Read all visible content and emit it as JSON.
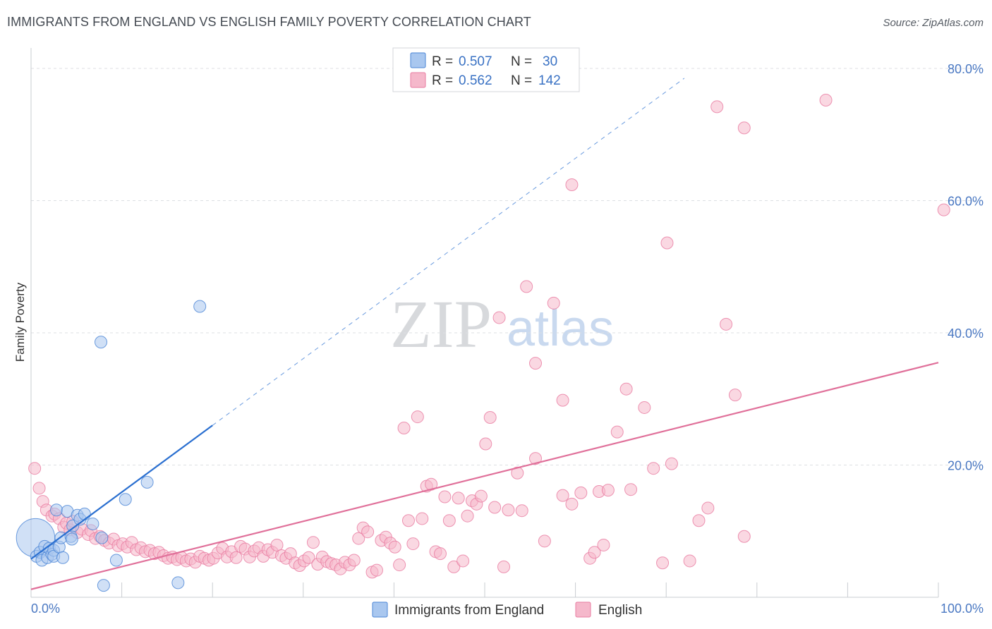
{
  "title": "IMMIGRANTS FROM ENGLAND VS ENGLISH FAMILY POVERTY CORRELATION CHART",
  "source": "Source: ZipAtlas.com",
  "watermark": {
    "part1": "ZIP",
    "part2": "atlas"
  },
  "colors": {
    "blue": "#4a84d6",
    "blue_fill": "#a9c7ef",
    "blue_line": "#2a6fd0",
    "pink": "#e87ba0",
    "pink_fill": "#f5b8cb",
    "pink_line": "#e0709a",
    "grid": "#dcdfe3",
    "tick_label": "#4a78c2"
  },
  "legend": {
    "rows": [
      {
        "r_label": "R =",
        "r_value": "0.507",
        "n_label": "N =",
        "n_value": "30"
      },
      {
        "r_label": "R =",
        "r_value": "0.562",
        "n_label": "N =",
        "n_value": "142"
      }
    ]
  },
  "chart_data": {
    "type": "scatter",
    "title": "IMMIGRANTS FROM ENGLAND VS ENGLISH FAMILY POVERTY CORRELATION CHART",
    "xlabel": "",
    "ylabel": "Family Poverty",
    "xlim": [
      0,
      100
    ],
    "ylim": [
      0,
      82
    ],
    "x_ticks": [
      0,
      10,
      20,
      30,
      40,
      50,
      60,
      70,
      80,
      90,
      100
    ],
    "x_tick_labels": {
      "0": "0.0%",
      "100": "100.0%"
    },
    "y_ticks": [
      20,
      40,
      60,
      80
    ],
    "y_tick_labels": [
      "20.0%",
      "40.0%",
      "60.0%",
      "80.0%"
    ],
    "grid": true,
    "legend_position": "top-center",
    "series": [
      {
        "name": "Immigrants from England",
        "color": "blue",
        "r": 0.507,
        "n": 30,
        "trend": {
          "x0": 0,
          "y0": 5.8,
          "x1": 20,
          "y1": 26.0,
          "dash_to_x": 72
        },
        "points": [
          [
            0.5,
            9.0,
            3.2
          ],
          [
            0.6,
            6.2,
            1
          ],
          [
            1.0,
            6.8,
            1
          ],
          [
            1.2,
            5.6,
            1
          ],
          [
            1.5,
            7.7,
            1
          ],
          [
            1.8,
            6.0,
            1
          ],
          [
            2.0,
            7.4,
            1
          ],
          [
            2.3,
            6.5,
            1
          ],
          [
            2.5,
            7.1,
            1
          ],
          [
            2.5,
            6.2,
            1
          ],
          [
            2.8,
            13.2,
            1
          ],
          [
            3.1,
            7.6,
            1
          ],
          [
            3.3,
            9.0,
            1
          ],
          [
            3.5,
            6.0,
            1
          ],
          [
            4.0,
            13.0,
            1
          ],
          [
            4.4,
            9.2,
            1
          ],
          [
            4.5,
            8.8,
            1
          ],
          [
            4.6,
            10.8,
            1
          ],
          [
            5.1,
            12.4,
            1
          ],
          [
            5.4,
            11.8,
            1
          ],
          [
            5.9,
            12.6,
            1
          ],
          [
            6.8,
            11.1,
            1
          ],
          [
            7.7,
            38.6,
            1
          ],
          [
            7.8,
            9.0,
            1
          ],
          [
            8.0,
            1.8,
            1
          ],
          [
            9.4,
            5.6,
            1
          ],
          [
            10.4,
            14.8,
            1
          ],
          [
            12.8,
            17.4,
            1
          ],
          [
            16.2,
            2.2,
            1
          ],
          [
            18.6,
            44.0,
            1
          ]
        ]
      },
      {
        "name": "English",
        "color": "pink",
        "r": 0.562,
        "n": 142,
        "trend": {
          "x0": 0,
          "y0": 1.2,
          "x1": 100,
          "y1": 35.5
        },
        "points": [
          [
            0.4,
            19.5,
            1
          ],
          [
            0.9,
            16.5,
            1
          ],
          [
            1.3,
            14.5,
            1
          ],
          [
            1.7,
            13.2,
            1
          ],
          [
            2.3,
            12.3,
            1
          ],
          [
            2.6,
            12.6,
            1
          ],
          [
            3.1,
            11.9,
            1
          ],
          [
            3.6,
            10.6,
            1
          ],
          [
            3.9,
            11.2,
            1
          ],
          [
            4.3,
            10.2,
            1
          ],
          [
            4.6,
            11.5,
            1
          ],
          [
            5.1,
            9.8,
            1
          ],
          [
            5.6,
            10.3,
            1
          ],
          [
            6.3,
            9.5,
            1
          ],
          [
            6.6,
            10.1,
            1
          ],
          [
            7.1,
            8.9,
            1
          ],
          [
            7.6,
            9.2,
            1
          ],
          [
            8.1,
            8.6,
            1
          ],
          [
            8.6,
            8.2,
            1
          ],
          [
            9.1,
            8.8,
            1
          ],
          [
            9.6,
            7.8,
            1
          ],
          [
            10.1,
            8.1,
            1
          ],
          [
            10.6,
            7.6,
            1
          ],
          [
            11.1,
            8.3,
            1
          ],
          [
            11.6,
            7.2,
            1
          ],
          [
            12.1,
            7.5,
            1
          ],
          [
            12.6,
            6.9,
            1
          ],
          [
            13.1,
            7.1,
            1
          ],
          [
            13.6,
            6.6,
            1
          ],
          [
            14.1,
            6.8,
            1
          ],
          [
            14.6,
            6.3,
            1
          ],
          [
            15.1,
            5.9,
            1
          ],
          [
            15.6,
            6.1,
            1
          ],
          [
            16.1,
            5.7,
            1
          ],
          [
            16.6,
            6.0,
            1
          ],
          [
            17.1,
            5.5,
            1
          ],
          [
            17.6,
            5.8,
            1
          ],
          [
            18.1,
            5.3,
            1
          ],
          [
            18.6,
            6.2,
            1
          ],
          [
            19.1,
            5.9,
            1
          ],
          [
            19.6,
            5.6,
            1
          ],
          [
            20.1,
            5.9,
            1
          ],
          [
            20.6,
            6.7,
            1
          ],
          [
            21.1,
            7.4,
            1
          ],
          [
            21.6,
            6.1,
            1
          ],
          [
            22.1,
            6.9,
            1
          ],
          [
            22.6,
            6.0,
            1
          ],
          [
            23.1,
            7.7,
            1
          ],
          [
            23.6,
            7.3,
            1
          ],
          [
            24.1,
            6.1,
            1
          ],
          [
            24.6,
            7.0,
            1
          ],
          [
            25.1,
            7.5,
            1
          ],
          [
            25.6,
            6.2,
            1
          ],
          [
            26.1,
            7.2,
            1
          ],
          [
            26.6,
            6.8,
            1
          ],
          [
            27.1,
            7.9,
            1
          ],
          [
            27.6,
            6.3,
            1
          ],
          [
            28.1,
            5.9,
            1
          ],
          [
            28.6,
            6.6,
            1
          ],
          [
            29.1,
            5.2,
            1
          ],
          [
            29.6,
            4.8,
            1
          ],
          [
            30.1,
            5.5,
            1
          ],
          [
            30.6,
            6.0,
            1
          ],
          [
            31.1,
            8.3,
            1
          ],
          [
            31.6,
            5.0,
            1
          ],
          [
            32.1,
            6.1,
            1
          ],
          [
            32.6,
            5.4,
            1
          ],
          [
            33.1,
            5.1,
            1
          ],
          [
            33.6,
            4.9,
            1
          ],
          [
            34.1,
            4.3,
            1
          ],
          [
            34.6,
            5.3,
            1
          ],
          [
            35.1,
            4.9,
            1
          ],
          [
            35.6,
            5.6,
            1
          ],
          [
            36.1,
            8.9,
            1
          ],
          [
            36.6,
            10.5,
            1
          ],
          [
            37.1,
            9.9,
            1
          ],
          [
            37.6,
            3.8,
            1
          ],
          [
            38.1,
            4.1,
            1
          ],
          [
            38.6,
            8.6,
            1
          ],
          [
            39.1,
            9.1,
            1
          ],
          [
            39.6,
            8.2,
            1
          ],
          [
            40.1,
            7.6,
            1
          ],
          [
            40.6,
            4.9,
            1
          ],
          [
            41.1,
            25.6,
            1
          ],
          [
            41.6,
            11.6,
            1
          ],
          [
            42.1,
            8.1,
            1
          ],
          [
            42.6,
            27.3,
            1
          ],
          [
            43.1,
            11.9,
            1
          ],
          [
            43.6,
            16.8,
            1
          ],
          [
            44.1,
            17.1,
            1
          ],
          [
            44.6,
            6.9,
            1
          ],
          [
            45.1,
            6.6,
            1
          ],
          [
            45.6,
            15.2,
            1
          ],
          [
            46.1,
            11.6,
            1
          ],
          [
            46.6,
            4.6,
            1
          ],
          [
            47.1,
            15.0,
            1
          ],
          [
            47.6,
            5.5,
            1
          ],
          [
            48.1,
            12.3,
            1
          ],
          [
            48.6,
            14.6,
            1
          ],
          [
            49.1,
            14.1,
            1
          ],
          [
            49.6,
            15.3,
            1
          ],
          [
            50.1,
            23.2,
            1
          ],
          [
            50.6,
            27.2,
            1
          ],
          [
            51.1,
            13.6,
            1
          ],
          [
            51.6,
            42.3,
            1
          ],
          [
            52.1,
            4.6,
            1
          ],
          [
            52.6,
            13.2,
            1
          ],
          [
            53.6,
            18.8,
            1
          ],
          [
            54.1,
            13.1,
            1
          ],
          [
            54.6,
            47.0,
            1
          ],
          [
            55.6,
            35.4,
            1
          ],
          [
            55.6,
            21.0,
            1
          ],
          [
            56.6,
            8.5,
            1
          ],
          [
            57.6,
            44.5,
            1
          ],
          [
            58.6,
            29.8,
            1
          ],
          [
            58.6,
            15.4,
            1
          ],
          [
            59.6,
            62.4,
            1
          ],
          [
            59.6,
            14.1,
            1
          ],
          [
            60.6,
            15.8,
            1
          ],
          [
            61.6,
            5.9,
            1
          ],
          [
            62.1,
            6.8,
            1
          ],
          [
            62.6,
            16.0,
            1
          ],
          [
            63.1,
            7.9,
            1
          ],
          [
            63.6,
            16.2,
            1
          ],
          [
            64.6,
            25.0,
            1
          ],
          [
            65.6,
            31.5,
            1
          ],
          [
            66.1,
            16.3,
            1
          ],
          [
            67.6,
            28.7,
            1
          ],
          [
            68.6,
            19.5,
            1
          ],
          [
            69.6,
            5.2,
            1
          ],
          [
            70.1,
            53.6,
            1
          ],
          [
            70.6,
            20.2,
            1
          ],
          [
            72.6,
            5.5,
            1
          ],
          [
            73.6,
            11.6,
            1
          ],
          [
            74.6,
            13.5,
            1
          ],
          [
            75.6,
            74.2,
            1
          ],
          [
            76.6,
            41.3,
            1
          ],
          [
            77.6,
            30.6,
            1
          ],
          [
            78.6,
            9.2,
            1
          ],
          [
            78.6,
            71.0,
            1
          ],
          [
            87.6,
            75.2,
            1
          ],
          [
            100.6,
            58.6,
            1
          ]
        ]
      }
    ]
  },
  "bottom_legend": [
    {
      "label": "Immigrants from England"
    },
    {
      "label": "English"
    }
  ]
}
